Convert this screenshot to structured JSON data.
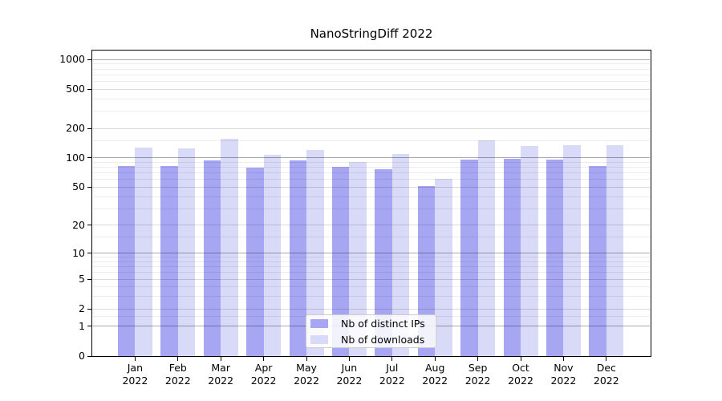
{
  "title": "NanoStringDiff 2022",
  "legend": {
    "items": [
      {
        "label": "Nb of distinct IPs",
        "color": "#a6a6f2"
      },
      {
        "label": "Nb of downloads",
        "color": "#d9d9f8"
      }
    ]
  },
  "chart_data": {
    "type": "bar",
    "title": "NanoStringDiff 2022",
    "categories": [
      "Jan 2022",
      "Feb 2022",
      "Mar 2022",
      "Apr 2022",
      "May 2022",
      "Jun 2022",
      "Jul 2022",
      "Aug 2022",
      "Sep 2022",
      "Oct 2022",
      "Nov 2022",
      "Dec 2022"
    ],
    "months": [
      "Jan",
      "Feb",
      "Mar",
      "Apr",
      "May",
      "Jun",
      "Jul",
      "Aug",
      "Sep",
      "Oct",
      "Nov",
      "Dec"
    ],
    "year_label": "2022",
    "series": [
      {
        "name": "Nb of distinct IPs",
        "color": "#a6a6f2",
        "values": [
          83,
          83,
          94,
          79,
          95,
          81,
          76,
          51,
          96,
          98,
          96,
          83
        ]
      },
      {
        "name": "Nb of downloads",
        "color": "#d9d9f8",
        "values": [
          128,
          124,
          158,
          107,
          120,
          91,
          109,
          61,
          152,
          132,
          135,
          134
        ]
      }
    ],
    "xlabel": "",
    "ylabel": "",
    "yscale": "log1p",
    "ylim": [
      0,
      1230
    ],
    "y_ticks": [
      0,
      1,
      2,
      5,
      10,
      20,
      50,
      100,
      200,
      500,
      1000
    ],
    "y_tick_labels": [
      "0",
      "1",
      "2",
      "5",
      "10",
      "20",
      "50",
      "100",
      "200",
      "500",
      "1000"
    ],
    "grid": true,
    "legend_position": "lower center",
    "bar_colors": {
      "distinct_ips": "#a6a6f2",
      "downloads": "#d9d9f8"
    }
  }
}
